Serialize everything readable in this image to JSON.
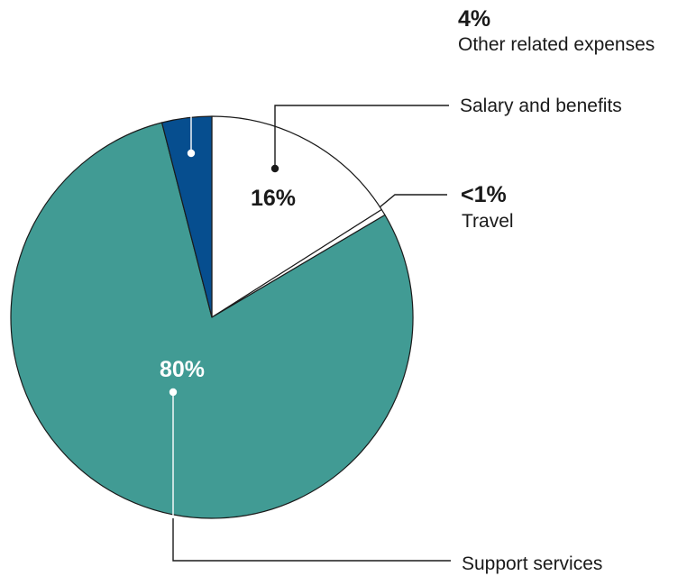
{
  "chart_data": {
    "type": "pie",
    "title": "",
    "slices": [
      {
        "label": "Salary and benefits",
        "value": 16,
        "value_label": "16%",
        "color": "#ffffff"
      },
      {
        "label": "Travel",
        "value": 0.5,
        "value_label": "<1%",
        "color": "#ffffff"
      },
      {
        "label": "Support services",
        "value": 79.5,
        "value_label": "80%",
        "color": "#419b94"
      },
      {
        "label": "Other related expenses",
        "value": 4,
        "value_label": "4%",
        "color": "#064e8f"
      }
    ],
    "outline_color": "#1a1a1a",
    "legend": "none"
  }
}
